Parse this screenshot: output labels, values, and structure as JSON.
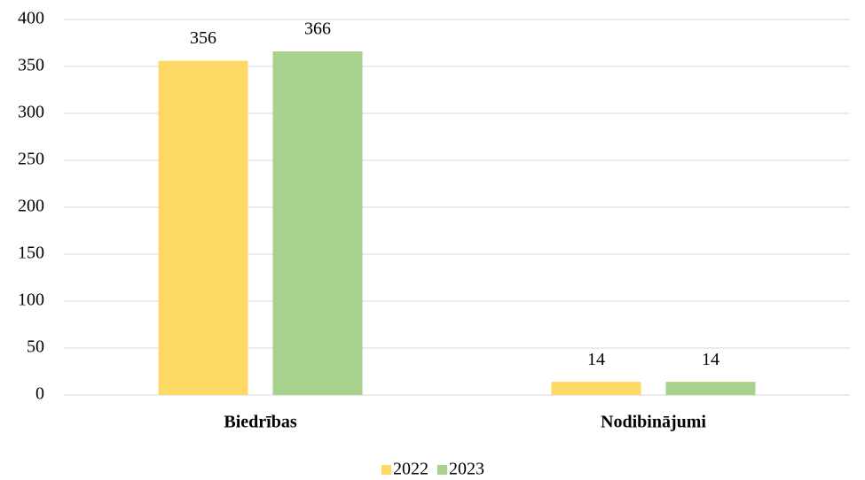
{
  "chart_data": {
    "type": "bar",
    "categories": [
      "Biedrības",
      "Nodibinājumi"
    ],
    "series": [
      {
        "name": "2022",
        "color": "#ffd966",
        "values": [
          356,
          14
        ]
      },
      {
        "name": "2023",
        "color": "#a9d18e",
        "values": [
          366,
          14
        ]
      }
    ],
    "ylim": [
      0,
      400
    ],
    "yticks": [
      0,
      50,
      100,
      150,
      200,
      250,
      300,
      350,
      400
    ],
    "grid": true,
    "legend": "bottom"
  }
}
